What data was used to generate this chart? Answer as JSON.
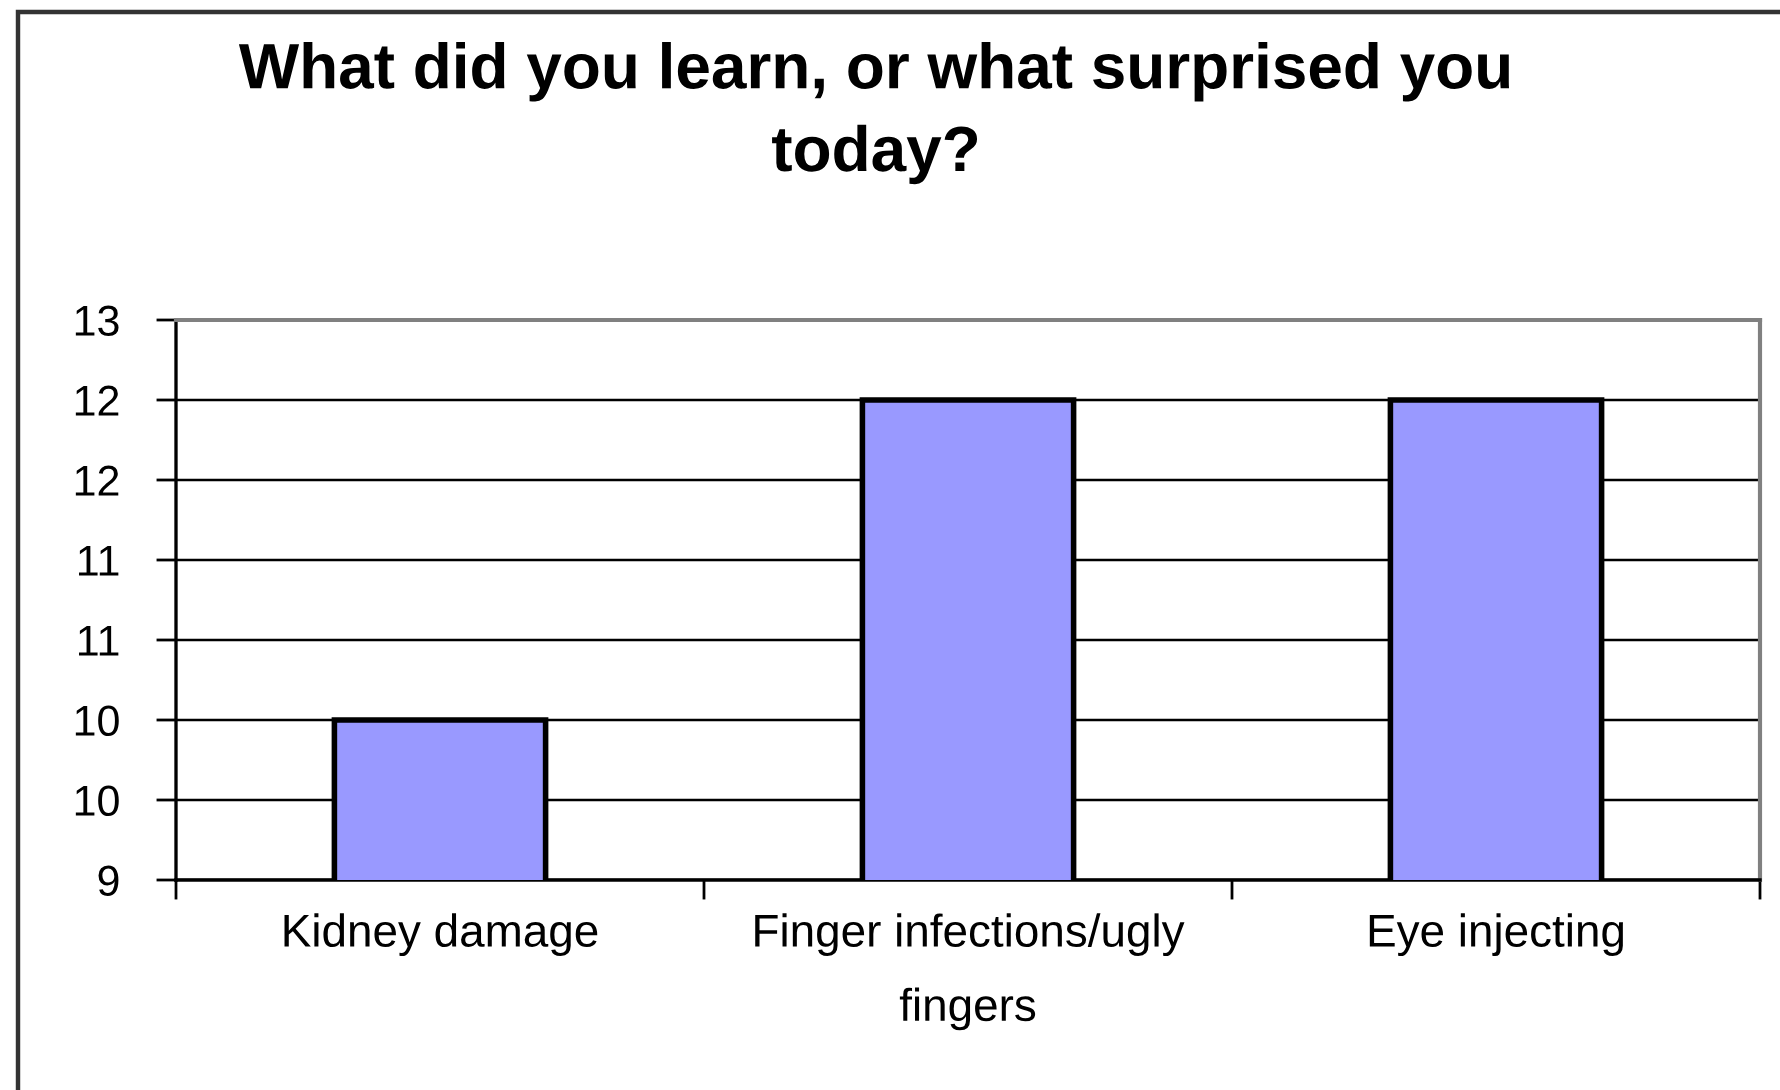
{
  "chart_data": {
    "type": "bar",
    "title": "What did you learn, or what surprised you today?",
    "categories": [
      "Kidney damage",
      "Finger infections/ugly fingers",
      "Eye injecting"
    ],
    "values": [
      10,
      12,
      12
    ],
    "color": "#9999ff",
    "ylim": [
      9,
      12.5
    ],
    "yticks": [
      9,
      {
        "value": 9.5,
        "label": "10"
      },
      10,
      {
        "value": 10.5,
        "label": "11"
      },
      11,
      {
        "value": 11.5,
        "label": "12"
      },
      12,
      {
        "value": 12.5,
        "label": "13"
      }
    ],
    "grid": "y"
  }
}
